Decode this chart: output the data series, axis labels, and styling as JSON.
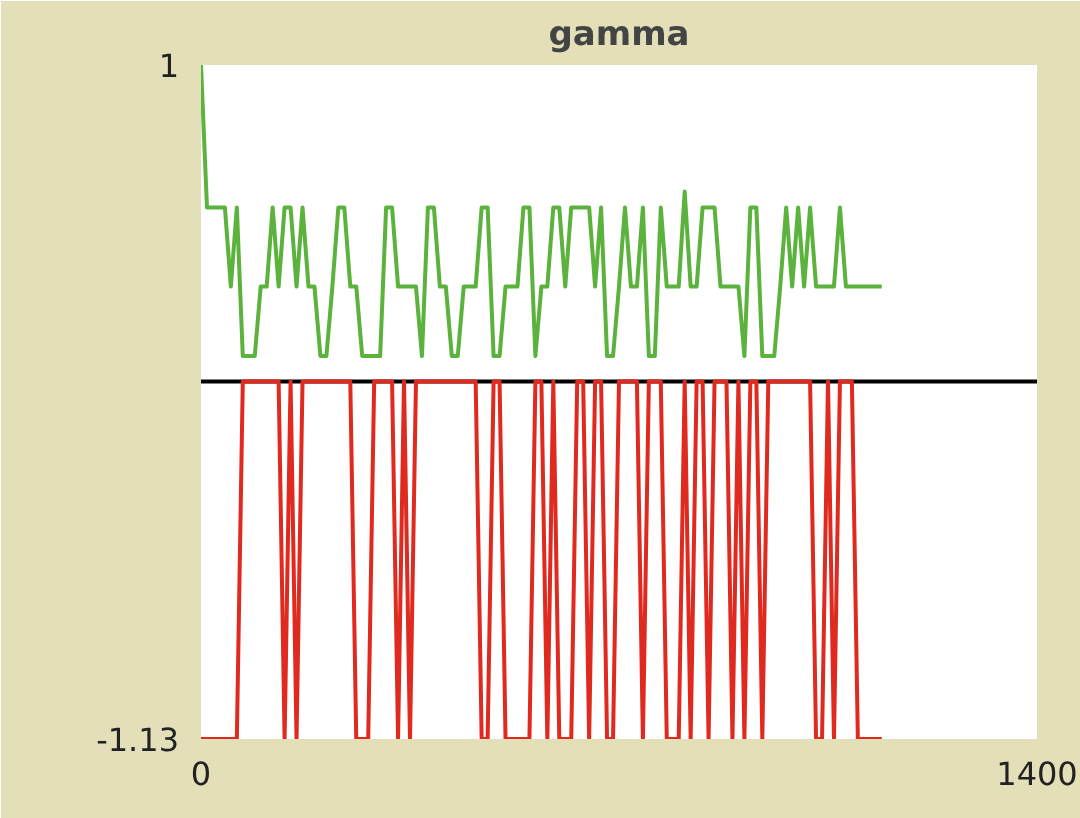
{
  "chart_data": {
    "type": "line",
    "title": "gamma",
    "xlim": [
      0,
      1400
    ],
    "xticks": [
      0,
      1400
    ],
    "ylim": [
      -1.13,
      1
    ],
    "yticks": [
      1,
      -1.13
    ],
    "x": [
      0,
      10,
      20,
      30,
      40,
      50,
      60,
      70,
      80,
      90,
      100,
      110,
      120,
      130,
      140,
      150,
      160,
      170,
      180,
      190,
      200,
      210,
      220,
      230,
      240,
      250,
      260,
      270,
      280,
      290,
      300,
      310,
      320,
      330,
      340,
      350,
      360,
      370,
      380,
      390,
      400,
      410,
      420,
      430,
      440,
      450,
      460,
      470,
      480,
      490,
      500,
      510,
      520,
      530,
      540,
      550,
      560,
      570,
      580,
      590,
      600,
      610,
      620,
      630,
      640,
      650,
      660,
      670,
      680,
      690,
      700,
      710,
      720,
      730,
      740,
      750,
      760,
      770,
      780,
      790,
      800,
      810,
      820,
      830,
      840,
      850,
      860,
      870,
      880,
      890,
      900,
      910,
      920,
      930,
      940,
      950,
      960,
      970,
      980,
      990,
      1000,
      1010,
      1020,
      1030,
      1040,
      1050,
      1060,
      1070,
      1080,
      1090,
      1100,
      1110,
      1120,
      1130,
      1140
    ],
    "series": [
      {
        "color": "#000000",
        "x": [
          0,
          1400
        ],
        "values": [
          0,
          0
        ]
      },
      {
        "color": "#5bb33d",
        "values": [
          1,
          0.55,
          0.55,
          0.55,
          0.55,
          0.3,
          0.55,
          0.08,
          0.08,
          0.08,
          0.3,
          0.3,
          0.55,
          0.3,
          0.55,
          0.55,
          0.3,
          0.55,
          0.3,
          0.3,
          0.08,
          0.08,
          0.3,
          0.55,
          0.55,
          0.3,
          0.3,
          0.08,
          0.08,
          0.08,
          0.08,
          0.55,
          0.55,
          0.3,
          0.3,
          0.3,
          0.3,
          0.08,
          0.55,
          0.55,
          0.3,
          0.3,
          0.08,
          0.08,
          0.3,
          0.3,
          0.3,
          0.55,
          0.55,
          0.08,
          0.08,
          0.3,
          0.3,
          0.3,
          0.55,
          0.55,
          0.08,
          0.3,
          0.3,
          0.55,
          0.55,
          0.3,
          0.55,
          0.55,
          0.55,
          0.55,
          0.3,
          0.55,
          0.08,
          0.08,
          0.3,
          0.55,
          0.3,
          0.3,
          0.55,
          0.08,
          0.08,
          0.55,
          0.3,
          0.3,
          0.3,
          0.6,
          0.3,
          0.3,
          0.55,
          0.55,
          0.55,
          0.3,
          0.3,
          0.3,
          0.3,
          0.08,
          0.55,
          0.55,
          0.08,
          0.08,
          0.08,
          0.3,
          0.55,
          0.3,
          0.55,
          0.3,
          0.55,
          0.3,
          0.3,
          0.3,
          0.3,
          0.55,
          0.3,
          0.3,
          0.3,
          0.3,
          0.3,
          0.3,
          0.3
        ]
      },
      {
        "color": "#e0291f",
        "values": [
          -1.13,
          -1.13,
          -1.13,
          -1.13,
          -1.13,
          -1.13,
          -1.13,
          0,
          0,
          0,
          0,
          0,
          0,
          0,
          -1.13,
          0,
          -1.13,
          0,
          0,
          0,
          0,
          0,
          0,
          0,
          0,
          0,
          -1.13,
          -1.13,
          -1.13,
          0,
          0,
          0,
          0,
          -1.13,
          0,
          -1.13,
          0,
          0,
          0,
          0,
          0,
          0,
          0,
          0,
          0,
          0,
          0,
          -1.13,
          -1.13,
          0,
          0,
          -1.13,
          -1.13,
          -1.13,
          -1.13,
          -1.13,
          0,
          0,
          -1.13,
          0,
          -1.13,
          -1.13,
          -1.13,
          0,
          0,
          -1.13,
          0,
          0,
          -1.13,
          -1.13,
          0,
          0,
          0,
          0,
          -1.13,
          0,
          0,
          0,
          -1.13,
          -1.13,
          -1.13,
          0,
          -1.13,
          0,
          0,
          -1.13,
          0,
          0,
          0,
          -1.13,
          0,
          -1.13,
          0,
          0,
          -1.13,
          0,
          0,
          0,
          0,
          0,
          0,
          0,
          0,
          -1.13,
          -1.13,
          0,
          -1.13,
          0,
          0,
          0,
          -1.13,
          -1.13,
          -1.13,
          -1.13,
          -1.13
        ]
      }
    ]
  }
}
